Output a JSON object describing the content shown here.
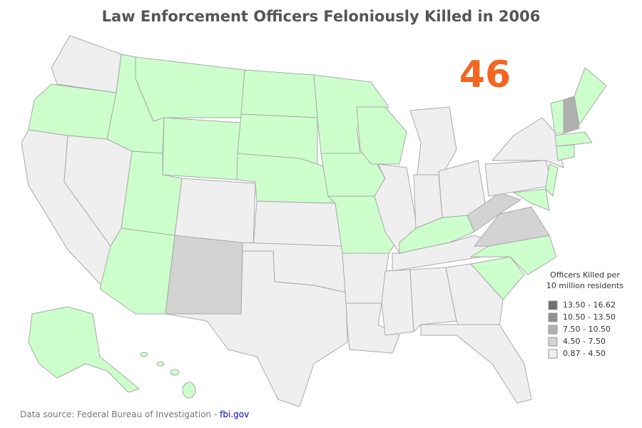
{
  "header": {
    "title": "Law Enforcement Officers Feloniously Killed in 2006"
  },
  "highlight": {
    "value": 46,
    "color": "#f26522"
  },
  "legend": {
    "title_lines": [
      "Officers Killed per",
      "10 million residents"
    ],
    "items": [
      {
        "label": "13.50 - 16.62",
        "color": "#707070"
      },
      {
        "label": "10.50 - 13.50",
        "color": "#909090"
      },
      {
        "label": "7.50 - 10.50",
        "color": "#b0b0b0"
      },
      {
        "label": "4.50 - 7.50",
        "color": "#d3d3d3"
      },
      {
        "label": "0.87 - 4.50",
        "color": "#efefef"
      }
    ]
  },
  "footer": {
    "source": "Data source: Federal Bureau of Investigation -",
    "link": "fbi.gov"
  }
}
